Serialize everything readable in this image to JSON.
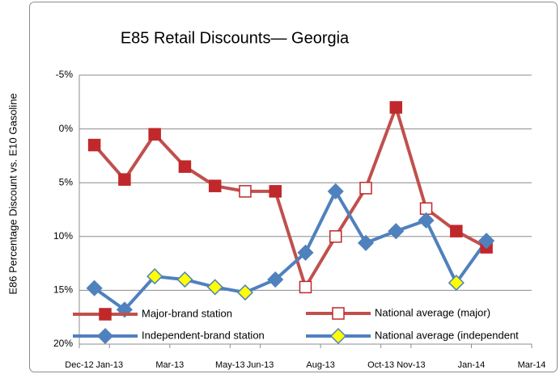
{
  "chart_data": {
    "type": "line",
    "title": "E85 Retail Discounts— Georgia",
    "ylabel": "E86 Percentage Discount vs. E10 Gasoline",
    "x": [
      "2012-12",
      "2013-01",
      "2013-02",
      "2013-03",
      "2013-04",
      "2013-05",
      "2013-06",
      "2013-07",
      "2013-08",
      "2013-09",
      "2013-10",
      "2013-11",
      "2013-12",
      "2014-01"
    ],
    "xlim": [
      "2012-12",
      "2014-03"
    ],
    "xticks": [
      {
        "value": "2012-12",
        "label": "Dec-12"
      },
      {
        "value": "2013-01",
        "label": "Jan-13"
      },
      {
        "value": "2013-03",
        "label": "Mar-13"
      },
      {
        "value": "2013-05",
        "label": "May-13"
      },
      {
        "value": "2013-06",
        "label": "Jun-13"
      },
      {
        "value": "2013-08",
        "label": "Aug-13"
      },
      {
        "value": "2013-10",
        "label": "Oct-13"
      },
      {
        "value": "2013-11",
        "label": "Nov-13"
      },
      {
        "value": "2014-01",
        "label": "Jan-14"
      },
      {
        "value": "2014-03",
        "label": "Mar-14"
      }
    ],
    "ylim": [
      -5,
      20
    ],
    "y_reversed": true,
    "yticks": [
      {
        "value": -5,
        "label": "-5%"
      },
      {
        "value": 0,
        "label": "0%"
      },
      {
        "value": 5,
        "label": "5%"
      },
      {
        "value": 10,
        "label": "10%"
      },
      {
        "value": 15,
        "label": "15%"
      },
      {
        "value": 20,
        "label": "20%"
      }
    ],
    "grid": true,
    "legend": "bottom",
    "series": [
      {
        "name": "Major-brand station",
        "color": "#c0504d",
        "marker": "square",
        "marker_fill": "#c0282b",
        "values": [
          1.5,
          4.7,
          0.5,
          3.5,
          5.3,
          null,
          5.8,
          null,
          null,
          null,
          -2.0,
          null,
          9.5,
          11.0
        ]
      },
      {
        "name": "National average (major)",
        "color": "#c0504d",
        "marker": "square",
        "marker_fill": "#ffffff",
        "values": [
          null,
          null,
          null,
          null,
          null,
          5.8,
          null,
          14.7,
          10.0,
          5.5,
          null,
          7.4,
          null,
          null
        ]
      },
      {
        "name": "Independent-brand station",
        "color": "#4f81bd",
        "marker": "diamond",
        "marker_fill": "#4f81bd",
        "values": [
          14.8,
          16.8,
          null,
          null,
          null,
          null,
          14.0,
          11.5,
          5.8,
          10.6,
          9.5,
          8.5,
          null,
          10.4
        ]
      },
      {
        "name": "National average (independent",
        "color": "#4f81bd",
        "marker": "diamond",
        "marker_fill": "#ffff00",
        "values": [
          null,
          null,
          13.7,
          14.0,
          14.7,
          15.2,
          null,
          null,
          null,
          null,
          null,
          null,
          14.3,
          null
        ]
      }
    ]
  }
}
